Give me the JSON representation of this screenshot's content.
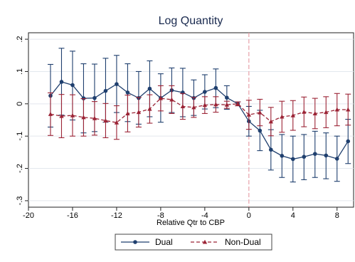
{
  "chart_data": {
    "type": "line",
    "title": "Log Quantity",
    "xlabel": "Relative Qtr to CBP",
    "ylabel": "",
    "xlim": [
      -20,
      9.5
    ],
    "ylim": [
      -0.32,
      0.22
    ],
    "xticks": [
      -20,
      -16,
      -12,
      -8,
      -4,
      0,
      4,
      8
    ],
    "yticks": [
      0.2,
      0.1,
      0,
      -0.1,
      -0.2,
      -0.3
    ],
    "ytick_labels": [
      ".2",
      ".1",
      "0",
      "-.1",
      "-.2",
      "-.3"
    ],
    "grid": "horizontal",
    "legend_position": "bottom",
    "reference_line": {
      "x": 0,
      "style": "dashed",
      "color": "#e8a0a8"
    },
    "series": [
      {
        "name": "Dual",
        "color": "#1f3f6e",
        "line_style": "solid",
        "marker": "circle",
        "x": [
          -18,
          -17,
          -16,
          -15,
          -14,
          -13,
          -12,
          -11,
          -10,
          -9,
          -8,
          -7,
          -6,
          -5,
          -4,
          -3,
          -2,
          -1,
          0,
          1,
          2,
          3,
          4,
          5,
          6,
          7,
          8,
          9
        ],
        "y": [
          0.025,
          0.068,
          0.058,
          0.017,
          0.018,
          0.04,
          0.061,
          0.035,
          0.018,
          0.047,
          0.018,
          0.042,
          0.035,
          0.018,
          0.037,
          0.049,
          0.019,
          0.0,
          -0.054,
          -0.083,
          -0.142,
          -0.161,
          -0.171,
          -0.164,
          -0.155,
          -0.16,
          -0.17,
          -0.116
        ],
        "ci_low": [
          -0.072,
          -0.035,
          -0.05,
          -0.09,
          -0.086,
          -0.057,
          -0.027,
          -0.055,
          -0.063,
          -0.04,
          -0.057,
          -0.027,
          -0.04,
          -0.036,
          -0.016,
          -0.012,
          -0.017,
          -0.006,
          -0.1,
          -0.145,
          -0.205,
          -0.228,
          -0.242,
          -0.235,
          -0.228,
          -0.232,
          -0.24,
          -0.185
        ],
        "ci_high": [
          0.122,
          0.172,
          0.163,
          0.124,
          0.123,
          0.141,
          0.15,
          0.124,
          0.1,
          0.133,
          0.093,
          0.111,
          0.11,
          0.074,
          0.09,
          0.108,
          0.056,
          0.006,
          -0.008,
          -0.02,
          -0.08,
          -0.095,
          -0.1,
          -0.095,
          -0.085,
          -0.09,
          -0.1,
          -0.048
        ]
      },
      {
        "name": "Non-Dual",
        "color": "#9b2335",
        "line_style": "dashed",
        "marker": "triangle",
        "x": [
          -18,
          -17,
          -16,
          -15,
          -14,
          -13,
          -12,
          -11,
          -10,
          -9,
          -8,
          -7,
          -6,
          -5,
          -4,
          -3,
          -2,
          -1,
          0,
          1,
          2,
          3,
          4,
          5,
          6,
          7,
          8,
          9
        ],
        "y": [
          -0.032,
          -0.038,
          -0.036,
          -0.042,
          -0.045,
          -0.052,
          -0.058,
          -0.03,
          -0.026,
          -0.016,
          0.017,
          0.013,
          -0.008,
          -0.011,
          -0.004,
          -0.002,
          -0.003,
          0.0,
          -0.034,
          -0.027,
          -0.055,
          -0.04,
          -0.036,
          -0.025,
          -0.03,
          -0.026,
          -0.018,
          -0.018
        ],
        "ci_low": [
          -0.098,
          -0.105,
          -0.1,
          -0.1,
          -0.097,
          -0.105,
          -0.11,
          -0.087,
          -0.072,
          -0.06,
          -0.022,
          -0.03,
          -0.048,
          -0.042,
          -0.03,
          -0.026,
          -0.014,
          -0.006,
          -0.079,
          -0.068,
          -0.099,
          -0.088,
          -0.082,
          -0.071,
          -0.077,
          -0.074,
          -0.068,
          -0.066
        ],
        "ci_high": [
          0.034,
          0.029,
          0.028,
          0.016,
          0.007,
          0.001,
          -0.006,
          0.027,
          0.02,
          0.028,
          0.056,
          0.056,
          0.032,
          0.02,
          0.022,
          0.022,
          0.008,
          0.006,
          0.011,
          0.014,
          -0.011,
          0.008,
          0.01,
          0.021,
          0.017,
          0.022,
          0.032,
          0.03
        ]
      }
    ]
  }
}
